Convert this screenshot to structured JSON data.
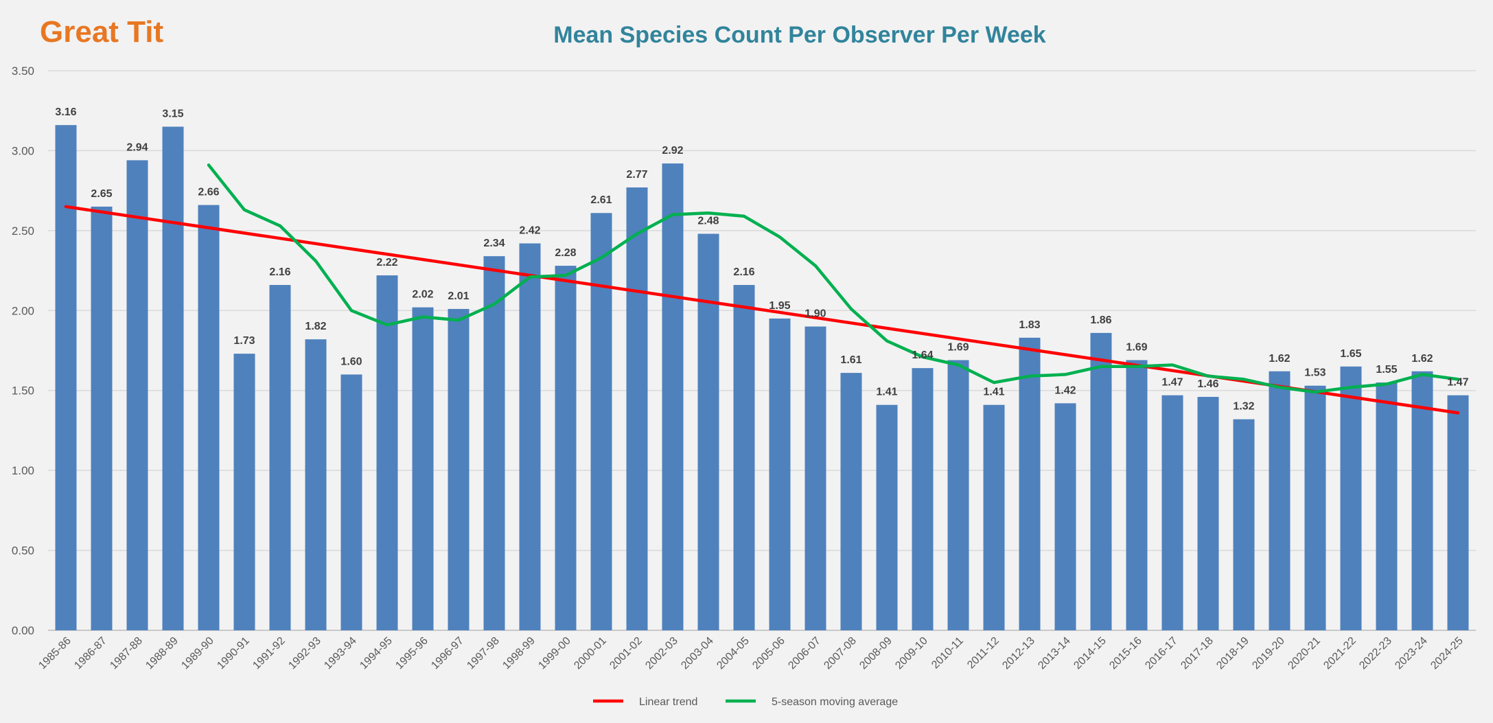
{
  "species": "Great Tit",
  "colors": {
    "bars": "#4f81bd",
    "trend": "#ff0000",
    "moving_average": "#00b050",
    "title": "#31849b",
    "species": "#e87722"
  },
  "legend": {
    "trend_label": "Linear trend",
    "ma_label": "5-season moving average",
    "placement": "bottom-center"
  },
  "chart_data": {
    "type": "bar",
    "title": "Mean Species Count Per Observer Per Week",
    "xlabel": "",
    "ylabel": "",
    "ylim": [
      0,
      3.5
    ],
    "yticks": [
      "0.00",
      "0.50",
      "1.00",
      "1.50",
      "2.00",
      "2.50",
      "3.00",
      "3.50"
    ],
    "grid": true,
    "categories": [
      "1985-86",
      "1986-87",
      "1987-88",
      "1988-89",
      "1989-90",
      "1990-91",
      "1991-92",
      "1992-93",
      "1993-94",
      "1994-95",
      "1995-96",
      "1996-97",
      "1997-98",
      "1998-99",
      "1999-00",
      "2000-01",
      "2001-02",
      "2002-03",
      "2003-04",
      "2004-05",
      "2005-06",
      "2006-07",
      "2007-08",
      "2008-09",
      "2009-10",
      "2010-11",
      "2011-12",
      "2012-13",
      "2013-14",
      "2014-15",
      "2015-16",
      "2016-17",
      "2017-18",
      "2018-19",
      "2019-20",
      "2020-21",
      "2021-22",
      "2022-23",
      "2023-24",
      "2024-25"
    ],
    "values": [
      3.16,
      2.65,
      2.94,
      3.15,
      2.66,
      1.73,
      2.16,
      1.82,
      1.6,
      2.22,
      2.02,
      2.01,
      2.34,
      2.42,
      2.28,
      2.61,
      2.77,
      2.92,
      2.48,
      2.16,
      1.95,
      1.9,
      1.61,
      1.41,
      1.64,
      1.69,
      1.41,
      1.83,
      1.42,
      1.86,
      1.69,
      1.47,
      1.46,
      1.32,
      1.62,
      1.53,
      1.65,
      1.55,
      1.62,
      1.47
    ],
    "data_labels": [
      "3.16",
      "2.65",
      "2.94",
      "3.15",
      "2.66",
      "1.73",
      "2.16",
      "1.82",
      "1.60",
      "2.22",
      "2.02",
      "2.01",
      "2.34",
      "2.42",
      "2.28",
      "2.61",
      "2.77",
      "2.92",
      "2.48",
      "2.16",
      "1.95",
      "1.90",
      "1.61",
      "1.41",
      "1.64",
      "1.69",
      "1.41",
      "1.83",
      "1.42",
      "1.86",
      "1.69",
      "1.47",
      "1.46",
      "1.32",
      "1.62",
      "1.53",
      "1.65",
      "1.55",
      "1.62",
      "1.47"
    ],
    "trend": {
      "start": 2.65,
      "end": 1.36
    },
    "moving_average": [
      null,
      null,
      null,
      null,
      2.91,
      2.63,
      2.53,
      2.31,
      2.0,
      1.91,
      1.96,
      1.94,
      2.04,
      2.21,
      2.22,
      2.33,
      2.48,
      2.6,
      2.61,
      2.59,
      2.46,
      2.28,
      2.01,
      1.81,
      1.71,
      1.66,
      1.55,
      1.59,
      1.6,
      1.65,
      1.65,
      1.66,
      1.59,
      1.57,
      1.52,
      1.49,
      1.52,
      1.54,
      1.6,
      1.57
    ]
  }
}
